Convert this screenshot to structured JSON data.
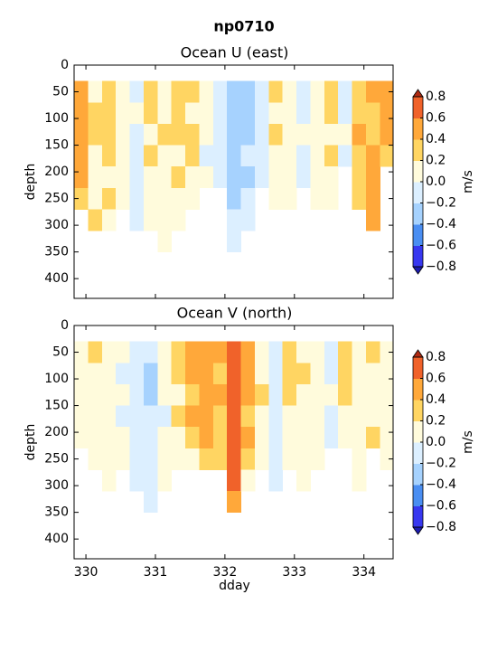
{
  "title": "np0710",
  "chart_data": [
    {
      "type": "heatmap",
      "title": "Ocean U (east)",
      "ylabel": "depth",
      "xlim": [
        329.83,
        334.42
      ],
      "ylim": [
        437,
        0
      ],
      "xticks": [
        330,
        331,
        332,
        333,
        334
      ],
      "yticks": [
        0,
        50,
        100,
        150,
        200,
        250,
        300,
        350,
        400
      ],
      "x_edges": [
        329.83,
        330.03,
        330.23,
        330.43,
        330.63,
        330.83,
        331.03,
        331.23,
        331.43,
        331.63,
        331.83,
        332.03,
        332.23,
        332.43,
        332.63,
        332.83,
        333.03,
        333.23,
        333.43,
        333.63,
        333.83,
        334.03,
        334.23,
        334.43
      ],
      "depth_edges": [
        30,
        70,
        110,
        150,
        190,
        230,
        270,
        310,
        350
      ],
      "values": [
        [
          0.5,
          0.5,
          0.5,
          0.5,
          0.5,
          0.3,
          null,
          null
        ],
        [
          0.1,
          0.3,
          0.3,
          0.1,
          0.1,
          0.1,
          0.3,
          null
        ],
        [
          0.3,
          0.3,
          0.3,
          0.3,
          0.1,
          0.3,
          0.1,
          null
        ],
        [
          0.1,
          0.1,
          0.1,
          0.1,
          0.1,
          0.1,
          null,
          null
        ],
        [
          -0.1,
          0.1,
          -0.1,
          -0.1,
          -0.1,
          -0.1,
          -0.1,
          null
        ],
        [
          0.3,
          0.3,
          0.1,
          0.3,
          0.1,
          0.1,
          0.1,
          null
        ],
        [
          0.1,
          0.1,
          0.3,
          0.1,
          0.1,
          0.1,
          0.1,
          0.1
        ],
        [
          0.3,
          0.3,
          0.3,
          0.1,
          0.3,
          0.1,
          0.1,
          null
        ],
        [
          0.3,
          0.1,
          0.3,
          0.3,
          0.1,
          0.1,
          null,
          null
        ],
        [
          0.1,
          0.1,
          0.1,
          -0.1,
          0.1,
          null,
          null,
          null
        ],
        [
          -0.1,
          -0.1,
          -0.1,
          -0.1,
          -0.1,
          null,
          null,
          null
        ],
        [
          -0.3,
          -0.3,
          -0.3,
          -0.3,
          -0.3,
          -0.3,
          -0.1,
          -0.1
        ],
        [
          -0.3,
          -0.3,
          -0.3,
          -0.1,
          -0.3,
          -0.1,
          -0.1,
          null
        ],
        [
          -0.1,
          -0.1,
          -0.1,
          -0.1,
          -0.1,
          null,
          null,
          null
        ],
        [
          0.3,
          0.1,
          0.3,
          0.1,
          0.1,
          0.1,
          null,
          null
        ],
        [
          0.1,
          0.1,
          0.1,
          0.1,
          0.1,
          0.1,
          null,
          null
        ],
        [
          -0.1,
          -0.1,
          0.1,
          -0.1,
          -0.1,
          null,
          null,
          null
        ],
        [
          0.1,
          0.1,
          0.1,
          0.1,
          0.1,
          0.1,
          null,
          null
        ],
        [
          0.3,
          0.3,
          0.1,
          0.3,
          0.1,
          0.1,
          null,
          null
        ],
        [
          -0.1,
          -0.1,
          0.1,
          -0.1,
          null,
          null,
          null,
          null
        ],
        [
          0.3,
          0.3,
          0.5,
          0.3,
          0.3,
          0.3,
          null,
          null
        ],
        [
          0.5,
          0.3,
          0.3,
          0.5,
          0.5,
          0.5,
          0.5,
          null
        ],
        [
          0.5,
          0.5,
          0.5,
          0.3,
          null,
          null,
          null,
          null
        ]
      ],
      "levels": [
        -0.8,
        -0.6,
        -0.4,
        -0.2,
        0,
        0.2,
        0.4,
        0.6,
        0.8
      ],
      "colors": [
        "#3838f0",
        "#4a8ef2",
        "#a6d2fe",
        "#dcefff",
        "#fffbdc",
        "#ffd562",
        "#ffa83a",
        "#f0622a"
      ],
      "under_color": "#1c1cb0",
      "over_color": "#b02a12",
      "colorbar_label": "m/s",
      "colorbar_ticks": [
        {
          "value": 0.8,
          "label": "0.8"
        },
        {
          "value": 0.6,
          "label": "0.6"
        },
        {
          "value": 0.4,
          "label": "0.4"
        },
        {
          "value": 0.2,
          "label": "0.2"
        },
        {
          "value": 0,
          "label": "0.0"
        },
        {
          "value": -0.2,
          "label": "−0.2"
        },
        {
          "value": -0.4,
          "label": "−0.4"
        },
        {
          "value": -0.6,
          "label": "−0.6"
        },
        {
          "value": -0.8,
          "label": "−0.8"
        }
      ]
    },
    {
      "type": "heatmap",
      "title": "Ocean V (north)",
      "ylabel": "depth",
      "xlabel": "dday",
      "xlim": [
        329.83,
        334.42
      ],
      "ylim": [
        437,
        0
      ],
      "xticks": [
        330,
        331,
        332,
        333,
        334
      ],
      "yticks": [
        0,
        50,
        100,
        150,
        200,
        250,
        300,
        350,
        400
      ],
      "x_edges": [
        329.83,
        330.03,
        330.23,
        330.43,
        330.63,
        330.83,
        331.03,
        331.23,
        331.43,
        331.63,
        331.83,
        332.03,
        332.23,
        332.43,
        332.63,
        332.83,
        333.03,
        333.23,
        333.43,
        333.63,
        333.83,
        334.03,
        334.23,
        334.43
      ],
      "depth_edges": [
        30,
        70,
        110,
        150,
        190,
        230,
        270,
        310,
        350
      ],
      "values": [
        [
          0.1,
          0.1,
          0.1,
          0.1,
          0.1,
          null,
          null,
          null
        ],
        [
          0.3,
          0.1,
          0.1,
          0.1,
          0.1,
          0.1,
          null,
          null
        ],
        [
          0.1,
          0.1,
          0.1,
          0.1,
          0.1,
          0.1,
          0.1,
          null
        ],
        [
          0.1,
          -0.1,
          0.1,
          -0.1,
          0.1,
          0.1,
          null,
          null
        ],
        [
          -0.1,
          -0.1,
          -0.1,
          -0.1,
          -0.1,
          -0.1,
          -0.1,
          null
        ],
        [
          -0.1,
          -0.3,
          -0.3,
          -0.1,
          -0.1,
          -0.1,
          -0.1,
          -0.1
        ],
        [
          0.1,
          0.1,
          0.1,
          -0.1,
          0.1,
          0.1,
          0.1,
          null
        ],
        [
          0.3,
          0.3,
          0.1,
          0.3,
          0.1,
          0.1,
          null,
          null
        ],
        [
          0.5,
          0.5,
          0.3,
          0.5,
          0.3,
          0.1,
          null,
          null
        ],
        [
          0.5,
          0.5,
          0.5,
          0.5,
          0.5,
          0.3,
          null,
          null
        ],
        [
          0.5,
          0.3,
          0.5,
          0.3,
          0.3,
          0.3,
          null,
          null
        ],
        [
          0.7,
          0.7,
          0.7,
          0.7,
          0.7,
          0.7,
          0.7,
          0.5
        ],
        [
          0.5,
          0.5,
          0.5,
          0.3,
          0.5,
          0.3,
          0.1,
          null
        ],
        [
          0.1,
          0.1,
          0.3,
          0.1,
          0.1,
          0.1,
          null,
          null
        ],
        [
          -0.1,
          -0.1,
          -0.1,
          -0.1,
          -0.1,
          -0.1,
          -0.1,
          null
        ],
        [
          0.3,
          0.3,
          0.3,
          0.1,
          0.1,
          0.1,
          null,
          null
        ],
        [
          0.1,
          0.3,
          0.1,
          0.1,
          0.1,
          0.1,
          0.1,
          null
        ],
        [
          0.1,
          0.1,
          0.1,
          0.1,
          0.1,
          0.1,
          null,
          null
        ],
        [
          -0.1,
          -0.1,
          0.1,
          -0.1,
          -0.1,
          null,
          null,
          null
        ],
        [
          0.3,
          0.3,
          0.3,
          0.1,
          0.1,
          null,
          null,
          null
        ],
        [
          0.1,
          0.1,
          0.1,
          0.1,
          0.1,
          0.1,
          0.1,
          null
        ],
        [
          0.3,
          0.1,
          0.1,
          0.1,
          0.3,
          null,
          null,
          null
        ],
        [
          0.1,
          0.1,
          0.1,
          0.1,
          0.1,
          0.1,
          null,
          null
        ]
      ],
      "levels": [
        -0.8,
        -0.6,
        -0.4,
        -0.2,
        0,
        0.2,
        0.4,
        0.6,
        0.8
      ],
      "colors": [
        "#3838f0",
        "#4a8ef2",
        "#a6d2fe",
        "#dcefff",
        "#fffbdc",
        "#ffd562",
        "#ffa83a",
        "#f0622a"
      ],
      "under_color": "#1c1cb0",
      "over_color": "#b02a12",
      "colorbar_label": "m/s",
      "colorbar_ticks": [
        {
          "value": 0.8,
          "label": "0.8"
        },
        {
          "value": 0.6,
          "label": "0.6"
        },
        {
          "value": 0.4,
          "label": "0.4"
        },
        {
          "value": 0.2,
          "label": "0.2"
        },
        {
          "value": 0,
          "label": "0.0"
        },
        {
          "value": -0.2,
          "label": "−0.2"
        },
        {
          "value": -0.4,
          "label": "−0.4"
        },
        {
          "value": -0.6,
          "label": "−0.6"
        },
        {
          "value": -0.8,
          "label": "−0.8"
        }
      ]
    }
  ]
}
